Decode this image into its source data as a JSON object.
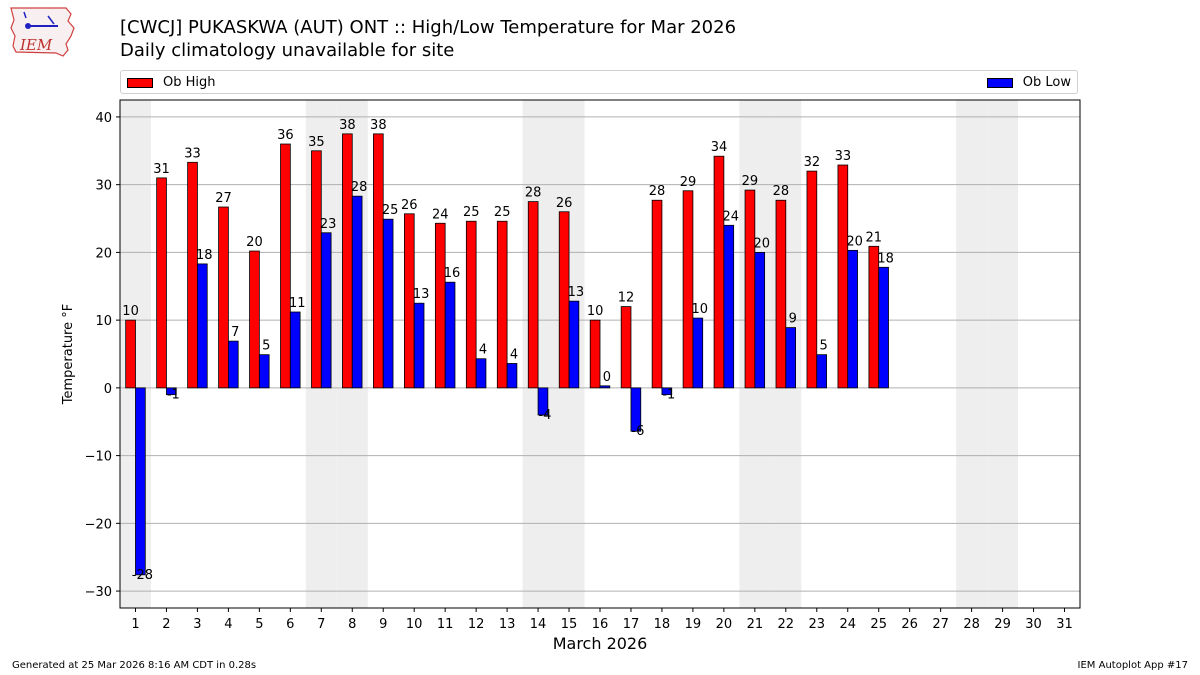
{
  "header": {
    "title_line1": "[CWCJ] PUKASKWA (AUT)  ONT :: High/Low Temperature for Mar 2026",
    "title_line2": "Daily climatology unavailable for site",
    "logo_text": "IEM"
  },
  "footer": {
    "generated": "Generated at 25 Mar 2026 8:16 AM CDT in 0.28s",
    "app": "IEM Autoplot App #17"
  },
  "colors": {
    "high": "#ff0000",
    "low": "#0000ff",
    "weekend_band": "#eeeeee",
    "grid": "#b0b0b0"
  },
  "chart_data": {
    "type": "bar",
    "title": "[CWCJ] PUKASKWA (AUT)  ONT :: High/Low Temperature for Mar 2026",
    "subtitle": "Daily climatology unavailable for site",
    "xlabel": "March 2026",
    "ylabel": "Temperature °F",
    "ylim": [
      -32.5,
      42.5
    ],
    "yticks": [
      -30,
      -20,
      -10,
      0,
      10,
      20,
      30,
      40
    ],
    "grid": true,
    "legend_placement": "top, spanning above plot",
    "categories": [
      "1",
      "2",
      "3",
      "4",
      "5",
      "6",
      "7",
      "8",
      "9",
      "10",
      "11",
      "12",
      "13",
      "14",
      "15",
      "16",
      "17",
      "18",
      "19",
      "20",
      "21",
      "22",
      "23",
      "24",
      "25",
      "26",
      "27",
      "28",
      "29",
      "30",
      "31"
    ],
    "shaded_days": [
      1,
      7,
      8,
      14,
      15,
      21,
      22,
      28,
      29
    ],
    "series": [
      {
        "name": "Ob High",
        "values": [
          10,
          31,
          33.3,
          26.7,
          20.2,
          36,
          35,
          37.5,
          37.5,
          25.7,
          24.3,
          24.6,
          24.6,
          27.5,
          26,
          10,
          12,
          27.7,
          29.1,
          34.2,
          29.2,
          27.7,
          32,
          32.9,
          20.9,
          null,
          null,
          null,
          null,
          null,
          null
        ],
        "labels": [
          "10",
          "31",
          "33",
          "27",
          "20",
          "36",
          "35",
          "38",
          "38",
          "26",
          "24",
          "25",
          "25",
          "28",
          "26",
          "10",
          "12",
          "28",
          "29",
          "34",
          "29",
          "28",
          "32",
          "33",
          "21",
          "",
          "",
          "",
          "",
          "",
          ""
        ]
      },
      {
        "name": "Ob Low",
        "values": [
          -27.6,
          -1,
          18.3,
          6.9,
          4.9,
          11.2,
          22.9,
          28.3,
          24.9,
          12.5,
          15.6,
          4.3,
          3.6,
          -4,
          12.8,
          0.3,
          -6.4,
          -1,
          10.3,
          24,
          20,
          8.9,
          4.9,
          20.3,
          17.8,
          null,
          null,
          null,
          null,
          null,
          null
        ],
        "labels": [
          "-28",
          "-1",
          "18",
          "7",
          "5",
          "11",
          "23",
          "28",
          "25",
          "13",
          "16",
          "4",
          "4",
          "-4",
          "13",
          "0",
          "-6",
          "-1",
          "10",
          "24",
          "20",
          "9",
          "5",
          "20",
          "18",
          "",
          "",
          "",
          "",
          "",
          ""
        ]
      }
    ]
  }
}
